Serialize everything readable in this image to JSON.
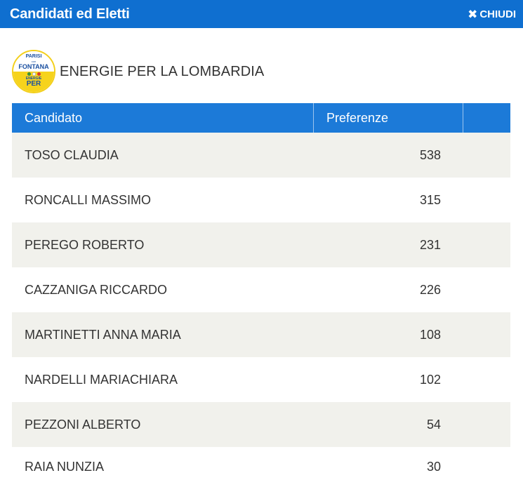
{
  "header": {
    "title": "Candidati ed Eletti",
    "close_label": "CHIUDI",
    "close_icon": "close-icon"
  },
  "party": {
    "name": "ENERGIE PER LA LOMBARDIA",
    "logo": {
      "line1": "PARISI",
      "line2": "con",
      "line3": "FONTANA",
      "line4": "ENERGIE",
      "line5": "PER"
    }
  },
  "table": {
    "columns": [
      "Candidato",
      "Preferenze",
      ""
    ],
    "rows": [
      {
        "name": "TOSO CLAUDIA",
        "preferences": "538"
      },
      {
        "name": "RONCALLI MASSIMO",
        "preferences": "315"
      },
      {
        "name": "PEREGO ROBERTO",
        "preferences": "231"
      },
      {
        "name": "CAZZANIGA RICCARDO",
        "preferences": "226"
      },
      {
        "name": "MARTINETTI ANNA MARIA",
        "preferences": "108"
      },
      {
        "name": "NARDELLI MARIACHIARA",
        "preferences": "102"
      },
      {
        "name": "PEZZONI ALBERTO",
        "preferences": "54"
      },
      {
        "name": "RAIA NUNZIA",
        "preferences": "30"
      }
    ]
  },
  "colors": {
    "header_bg": "#0f6fd0",
    "table_header_bg": "#1c7ad8",
    "row_alt_bg": "#f1f1ec",
    "logo_yellow": "#f6d31c"
  }
}
